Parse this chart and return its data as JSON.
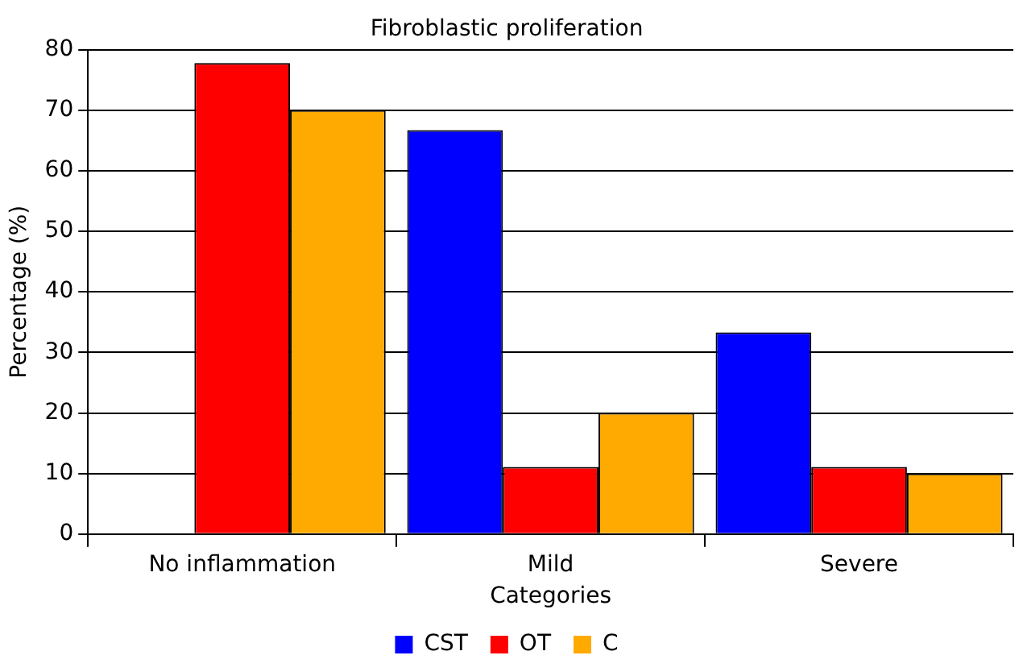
{
  "chart_data": {
    "type": "bar",
    "title": "Fibroblastic proliferation",
    "xlabel": "Categories",
    "ylabel": "Percentage (%)",
    "categories": [
      "No inflammation",
      "Mild",
      "Severe"
    ],
    "series": [
      {
        "name": "CST",
        "color": "#0000ff",
        "values": [
          0,
          66.7,
          33.3
        ]
      },
      {
        "name": "OT",
        "color": "#ff0000",
        "values": [
          77.8,
          11.1,
          11.1
        ]
      },
      {
        "name": "C",
        "color": "#ffaa00",
        "values": [
          70,
          20,
          10
        ]
      }
    ],
    "ylim": [
      0,
      80
    ],
    "yticks": [
      0,
      10,
      20,
      30,
      40,
      50,
      60,
      70,
      80
    ],
    "grid": "y",
    "legend": "bottom"
  }
}
